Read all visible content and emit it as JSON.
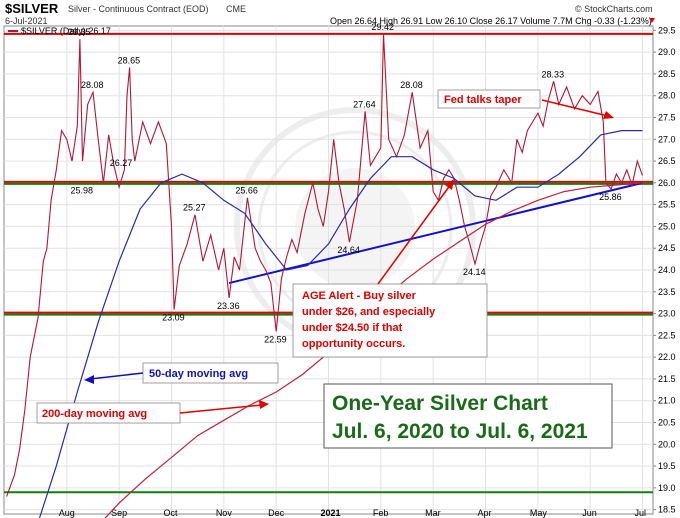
{
  "header": {
    "symbol": "$SILVER",
    "description": "Silver - Continuous Contract (EOD)",
    "exchange": "CME",
    "date": "6-Jul-2021",
    "stats": "Open 26.64  High 26.91  Low 26.10  Close 26.17  Volume 7.7M  Chg -0.33 (-1.23%)",
    "credit": "© StockCharts.com"
  },
  "legend": {
    "label": "$SILVER (Daily) 26.17"
  },
  "colors": {
    "price": "#b0183a",
    "ma50": "#2a2aaa",
    "ma200": "#c02040",
    "red_line": "#e00000",
    "green_line": "#108010",
    "trend_line": "#1010d0",
    "grid": "#e2e2e2",
    "big_title": "#1a6a1a",
    "ann_red": "#e00000",
    "ann_blue": "#1010c0"
  },
  "annotations": {
    "fed": "Fed talks taper",
    "age_alert": [
      "AGE Alert - Buy silver",
      "under $26, and especially",
      "under $24.50 if that",
      "opportunity occurs."
    ],
    "ma50": "50-day moving avg",
    "ma200": "200-day moving avg",
    "big_title": [
      "One-Year Silver Chart",
      "Jul. 6, 2020 to Jul. 6, 2021"
    ]
  },
  "chart_data": {
    "type": "line",
    "ylim": [
      18.4,
      29.6
    ],
    "y_ticks": [
      18.5,
      19.0,
      19.5,
      20.0,
      20.5,
      21.0,
      21.5,
      22.0,
      22.5,
      23.0,
      23.5,
      24.0,
      24.5,
      25.0,
      25.5,
      26.0,
      26.5,
      27.0,
      27.5,
      28.0,
      28.5,
      29.0,
      29.5
    ],
    "y_tick_labels": [
      "18.5",
      "19.0",
      "19.5",
      "20.0",
      "20.5",
      "21.0",
      "21.5",
      "22.0",
      "22.5",
      "23.0",
      "23.5",
      "24.0",
      "24.5",
      "25.0",
      "25.5",
      "26.0",
      "26.5",
      "27.0",
      "27.5",
      "28.0",
      "28.5",
      "29.0",
      "29.5"
    ],
    "x_ticks": [
      {
        "label": "Aug",
        "x": 1.0,
        "year": false
      },
      {
        "label": "Sep",
        "x": 2.0,
        "year": false
      },
      {
        "label": "Oct",
        "x": 3.0,
        "year": false
      },
      {
        "label": "Nov",
        "x": 4.0,
        "year": false
      },
      {
        "label": "Dec",
        "x": 5.0,
        "year": false
      },
      {
        "label": "2021",
        "x": 6.0,
        "year": true
      },
      {
        "label": "Feb",
        "x": 7.0,
        "year": false
      },
      {
        "label": "Mar",
        "x": 8.0,
        "year": false
      },
      {
        "label": "Apr",
        "x": 9.0,
        "year": false
      },
      {
        "label": "May",
        "x": 10.0,
        "year": false
      },
      {
        "label": "Jun",
        "x": 11.0,
        "year": false
      },
      {
        "label": "Jul",
        "x": 12.0,
        "year": false
      }
    ],
    "xlim": [
      -0.2,
      12.2
    ],
    "series": [
      {
        "key": "price",
        "name": "$SILVER (Daily) 26.17",
        "points": [
          [
            -0.15,
            18.8
          ],
          [
            0.0,
            19.3
          ],
          [
            0.1,
            19.9
          ],
          [
            0.2,
            20.8
          ],
          [
            0.3,
            22.0
          ],
          [
            0.45,
            22.9
          ],
          [
            0.55,
            24.2
          ],
          [
            0.62,
            24.5
          ],
          [
            0.7,
            25.6
          ],
          [
            0.8,
            26.3
          ],
          [
            0.9,
            27.2
          ],
          [
            1.0,
            27.0
          ],
          [
            1.1,
            26.5
          ],
          [
            1.2,
            27.3
          ],
          [
            1.25,
            29.3
          ],
          [
            1.3,
            26.5
          ],
          [
            1.4,
            27.8
          ],
          [
            1.5,
            28.08
          ],
          [
            1.6,
            27.0
          ],
          [
            1.7,
            26.0
          ],
          [
            1.8,
            27.1
          ],
          [
            1.9,
            26.4
          ],
          [
            2.0,
            25.9
          ],
          [
            2.1,
            26.3
          ],
          [
            2.15,
            28.0
          ],
          [
            2.2,
            28.65
          ],
          [
            2.25,
            27.0
          ],
          [
            2.3,
            26.5
          ],
          [
            2.45,
            27.4
          ],
          [
            2.6,
            26.9
          ],
          [
            2.75,
            27.4
          ],
          [
            2.9,
            26.9
          ],
          [
            3.0,
            25.0
          ],
          [
            3.05,
            23.09
          ],
          [
            3.15,
            24.1
          ],
          [
            3.3,
            24.6
          ],
          [
            3.45,
            25.27
          ],
          [
            3.6,
            24.2
          ],
          [
            3.75,
            24.8
          ],
          [
            3.9,
            24.0
          ],
          [
            4.0,
            24.5
          ],
          [
            4.1,
            23.36
          ],
          [
            4.2,
            24.3
          ],
          [
            4.3,
            24.0
          ],
          [
            4.45,
            25.66
          ],
          [
            4.6,
            24.5
          ],
          [
            4.7,
            24.2
          ],
          [
            4.8,
            24.0
          ],
          [
            4.9,
            23.7
          ],
          [
            5.0,
            22.59
          ],
          [
            5.1,
            23.8
          ],
          [
            5.2,
            24.3
          ],
          [
            5.3,
            24.7
          ],
          [
            5.4,
            24.4
          ],
          [
            5.55,
            25.3
          ],
          [
            5.7,
            26.0
          ],
          [
            5.8,
            25.4
          ],
          [
            5.9,
            25.0
          ],
          [
            6.0,
            25.8
          ],
          [
            6.1,
            27.0
          ],
          [
            6.2,
            26.0
          ],
          [
            6.3,
            25.4
          ],
          [
            6.4,
            24.64
          ],
          [
            6.55,
            25.6
          ],
          [
            6.7,
            27.64
          ],
          [
            6.8,
            26.4
          ],
          [
            6.9,
            26.6
          ],
          [
            7.0,
            26.8
          ],
          [
            7.05,
            29.42
          ],
          [
            7.15,
            27.0
          ],
          [
            7.3,
            26.6
          ],
          [
            7.45,
            27.1
          ],
          [
            7.6,
            28.08
          ],
          [
            7.75,
            26.8
          ],
          [
            7.9,
            27.2
          ],
          [
            8.0,
            25.8
          ],
          [
            8.1,
            25.6
          ],
          [
            8.2,
            26.1
          ],
          [
            8.3,
            26.3
          ],
          [
            8.4,
            26.1
          ],
          [
            8.5,
            25.6
          ],
          [
            8.6,
            25.0
          ],
          [
            8.7,
            24.6
          ],
          [
            8.8,
            24.14
          ],
          [
            8.9,
            24.6
          ],
          [
            9.0,
            25.0
          ],
          [
            9.1,
            25.7
          ],
          [
            9.2,
            25.9
          ],
          [
            9.35,
            26.3
          ],
          [
            9.5,
            26.0
          ],
          [
            9.6,
            27.0
          ],
          [
            9.7,
            26.7
          ],
          [
            9.8,
            27.2
          ],
          [
            9.9,
            27.4
          ],
          [
            10.0,
            27.6
          ],
          [
            10.1,
            27.3
          ],
          [
            10.2,
            27.9
          ],
          [
            10.3,
            28.33
          ],
          [
            10.4,
            27.8
          ],
          [
            10.55,
            28.2
          ],
          [
            10.7,
            27.7
          ],
          [
            10.85,
            28.0
          ],
          [
            11.0,
            27.8
          ],
          [
            11.15,
            28.1
          ],
          [
            11.25,
            27.4
          ],
          [
            11.3,
            26.0
          ],
          [
            11.4,
            25.86
          ],
          [
            11.5,
            26.2
          ],
          [
            11.6,
            26.0
          ],
          [
            11.7,
            26.3
          ],
          [
            11.8,
            25.95
          ],
          [
            11.9,
            26.5
          ],
          [
            12.0,
            26.17
          ]
        ]
      },
      {
        "key": "ma50",
        "name": "50-day moving avg",
        "points": [
          [
            0.45,
            18.2
          ],
          [
            0.8,
            19.5
          ],
          [
            1.2,
            21.2
          ],
          [
            1.6,
            22.8
          ],
          [
            2.0,
            24.2
          ],
          [
            2.4,
            25.4
          ],
          [
            2.8,
            26.0
          ],
          [
            3.2,
            26.2
          ],
          [
            3.6,
            26.0
          ],
          [
            4.0,
            25.6
          ],
          [
            4.4,
            25.3
          ],
          [
            4.8,
            24.6
          ],
          [
            5.2,
            24.0
          ],
          [
            5.6,
            24.1
          ],
          [
            6.0,
            24.6
          ],
          [
            6.4,
            25.4
          ],
          [
            6.8,
            26.1
          ],
          [
            7.2,
            26.6
          ],
          [
            7.6,
            26.6
          ],
          [
            8.0,
            26.3
          ],
          [
            8.4,
            26.1
          ],
          [
            8.8,
            25.7
          ],
          [
            9.2,
            25.6
          ],
          [
            9.6,
            25.9
          ],
          [
            10.0,
            25.9
          ],
          [
            10.4,
            26.2
          ],
          [
            10.8,
            26.6
          ],
          [
            11.2,
            27.1
          ],
          [
            11.6,
            27.2
          ],
          [
            12.0,
            27.2
          ]
        ]
      },
      {
        "key": "ma200",
        "name": "200-day moving avg",
        "points": [
          [
            1.65,
            18.2
          ],
          [
            2.0,
            18.65
          ],
          [
            2.5,
            19.2
          ],
          [
            3.0,
            19.7
          ],
          [
            3.5,
            20.2
          ],
          [
            4.0,
            20.55
          ],
          [
            4.5,
            20.9
          ],
          [
            5.0,
            21.2
          ],
          [
            5.5,
            21.6
          ],
          [
            6.0,
            22.1
          ],
          [
            6.5,
            22.7
          ],
          [
            7.0,
            23.3
          ],
          [
            7.5,
            23.8
          ],
          [
            8.0,
            24.25
          ],
          [
            8.5,
            24.65
          ],
          [
            9.0,
            25.05
          ],
          [
            9.5,
            25.35
          ],
          [
            10.0,
            25.6
          ],
          [
            10.5,
            25.8
          ],
          [
            11.0,
            25.9
          ],
          [
            11.5,
            25.95
          ],
          [
            12.0,
            26.0
          ]
        ]
      }
    ],
    "horizontal_lines": [
      {
        "key": "red",
        "y": 29.42
      },
      {
        "key": "red",
        "y": 26.0
      },
      {
        "key": "red",
        "y": 23.0
      },
      {
        "key": "green",
        "y": 26.0
      },
      {
        "key": "green",
        "y": 23.0
      },
      {
        "key": "green",
        "y": 18.9
      }
    ],
    "trend_line": [
      [
        4.1,
        23.7
      ],
      [
        12.0,
        26.0
      ]
    ],
    "data_labels": [
      {
        "x": 1.25,
        "y": 29.3,
        "text": "29.35",
        "dy": -4
      },
      {
        "x": 1.5,
        "y": 28.08,
        "text": "28.08",
        "dy": -4
      },
      {
        "x": 2.2,
        "y": 28.65,
        "text": "28.65",
        "dy": -4
      },
      {
        "x": 1.3,
        "y": 25.98,
        "text": "25.98",
        "dy": 10
      },
      {
        "x": 2.05,
        "y": 26.3,
        "text": "26.27",
        "dy": -4
      },
      {
        "x": 3.05,
        "y": 23.09,
        "text": "23.09",
        "dy": 11
      },
      {
        "x": 3.45,
        "y": 25.27,
        "text": "25.27",
        "dy": -4
      },
      {
        "x": 4.1,
        "y": 23.36,
        "text": "23.36",
        "dy": 11
      },
      {
        "x": 4.45,
        "y": 25.66,
        "text": "25.66",
        "dy": -4
      },
      {
        "x": 5.0,
        "y": 22.59,
        "text": "22.59",
        "dy": 11
      },
      {
        "x": 6.4,
        "y": 24.64,
        "text": "24.64",
        "dy": 11
      },
      {
        "x": 6.7,
        "y": 27.64,
        "text": "27.64",
        "dy": -4
      },
      {
        "x": 7.05,
        "y": 29.42,
        "text": "29.42",
        "dy": -4
      },
      {
        "x": 7.6,
        "y": 28.08,
        "text": "28.08",
        "dy": -4
      },
      {
        "x": 8.8,
        "y": 24.14,
        "text": "24.14",
        "dy": 11
      },
      {
        "x": 10.3,
        "y": 28.33,
        "text": "28.33",
        "dy": -4
      },
      {
        "x": 11.4,
        "y": 25.86,
        "text": "25.86",
        "dy": 11
      }
    ]
  }
}
